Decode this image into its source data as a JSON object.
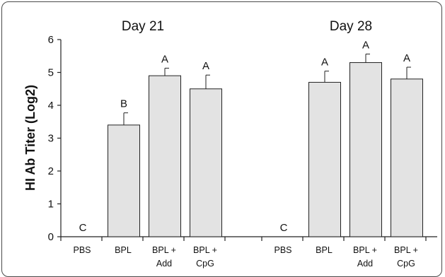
{
  "chart_data": {
    "type": "bar",
    "ylabel": "HI Ab Titer (Log2)",
    "ylim": [
      0,
      6
    ],
    "yticks": [
      "0",
      "1",
      "2",
      "3",
      "4",
      "5",
      "6"
    ],
    "groups": [
      {
        "title": "Day 21",
        "categories": [
          {
            "line1": "PBS",
            "line2": ""
          },
          {
            "line1": "BPL",
            "line2": ""
          },
          {
            "line1": "BPL +",
            "line2": "Add"
          },
          {
            "line1": "BPL +",
            "line2": "CpG"
          }
        ],
        "values": [
          0,
          3.4,
          4.9,
          4.5
        ],
        "errors": [
          0,
          0.37,
          0.23,
          0.42
        ],
        "letters": [
          "C",
          "B",
          "A",
          "A"
        ]
      },
      {
        "title": "Day 28",
        "categories": [
          {
            "line1": "PBS",
            "line2": ""
          },
          {
            "line1": "BPL",
            "line2": ""
          },
          {
            "line1": "BPL +",
            "line2": "Add"
          },
          {
            "line1": "BPL +",
            "line2": "CpG"
          }
        ],
        "values": [
          0,
          4.7,
          5.3,
          4.8
        ],
        "errors": [
          0,
          0.34,
          0.26,
          0.36
        ],
        "letters": [
          "C",
          "A",
          "A",
          "A"
        ]
      }
    ],
    "colors": {
      "bar_fill": "#e3e3e3",
      "bar_stroke": "#222222",
      "axis": "#222222"
    }
  }
}
